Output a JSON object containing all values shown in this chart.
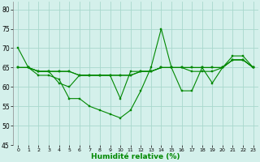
{
  "title": "",
  "xlabel": "Humidité relative (%)",
  "ylabel": "",
  "background_color": "#d4f0eb",
  "grid_color": "#a8d8cc",
  "line_color": "#008800",
  "marker_color": "#008800",
  "xlim": [
    -0.5,
    23.5
  ],
  "ylim": [
    45,
    82
  ],
  "yticks": [
    45,
    50,
    55,
    60,
    65,
    70,
    75,
    80
  ],
  "xticks": [
    0,
    1,
    2,
    3,
    4,
    5,
    6,
    7,
    8,
    9,
    10,
    11,
    12,
    13,
    14,
    15,
    16,
    17,
    18,
    19,
    20,
    21,
    22,
    23
  ],
  "lines": [
    {
      "x": [
        0,
        1,
        2,
        3,
        4,
        5,
        6,
        7,
        8,
        9,
        10,
        11,
        12,
        13,
        14,
        15,
        16,
        17,
        18,
        19,
        20,
        21,
        22,
        23
      ],
      "y": [
        70,
        65,
        63,
        63,
        62,
        57,
        57,
        55,
        54,
        53,
        52,
        54,
        59,
        65,
        75,
        65,
        59,
        59,
        65,
        61,
        65,
        68,
        68,
        65
      ]
    },
    {
      "x": [
        0,
        1,
        2,
        3,
        4,
        5,
        6,
        7,
        8,
        9,
        10,
        11,
        12,
        13,
        14,
        15,
        16,
        17,
        18,
        19,
        20,
        21,
        22,
        23
      ],
      "y": [
        65,
        65,
        64,
        64,
        64,
        64,
        63,
        63,
        63,
        63,
        57,
        64,
        64,
        64,
        65,
        65,
        65,
        64,
        64,
        64,
        65,
        67,
        67,
        65
      ]
    },
    {
      "x": [
        0,
        1,
        2,
        3,
        4,
        5,
        6,
        7,
        8,
        9,
        10,
        11,
        12,
        13,
        14,
        15,
        16,
        17,
        18,
        19,
        20,
        21,
        22,
        23
      ],
      "y": [
        65,
        65,
        64,
        64,
        64,
        64,
        63,
        63,
        63,
        63,
        63,
        63,
        64,
        64,
        65,
        65,
        65,
        65,
        65,
        65,
        65,
        67,
        67,
        65
      ]
    },
    {
      "x": [
        0,
        1,
        2,
        3,
        4,
        5,
        6,
        7,
        8,
        9,
        10,
        11,
        12,
        13,
        14,
        15,
        16,
        17,
        18,
        19,
        20,
        21,
        22,
        23
      ],
      "y": [
        65,
        65,
        64,
        64,
        61,
        60,
        63,
        63,
        63,
        63,
        63,
        63,
        64,
        64,
        65,
        65,
        65,
        65,
        65,
        65,
        65,
        67,
        67,
        65
      ]
    }
  ]
}
